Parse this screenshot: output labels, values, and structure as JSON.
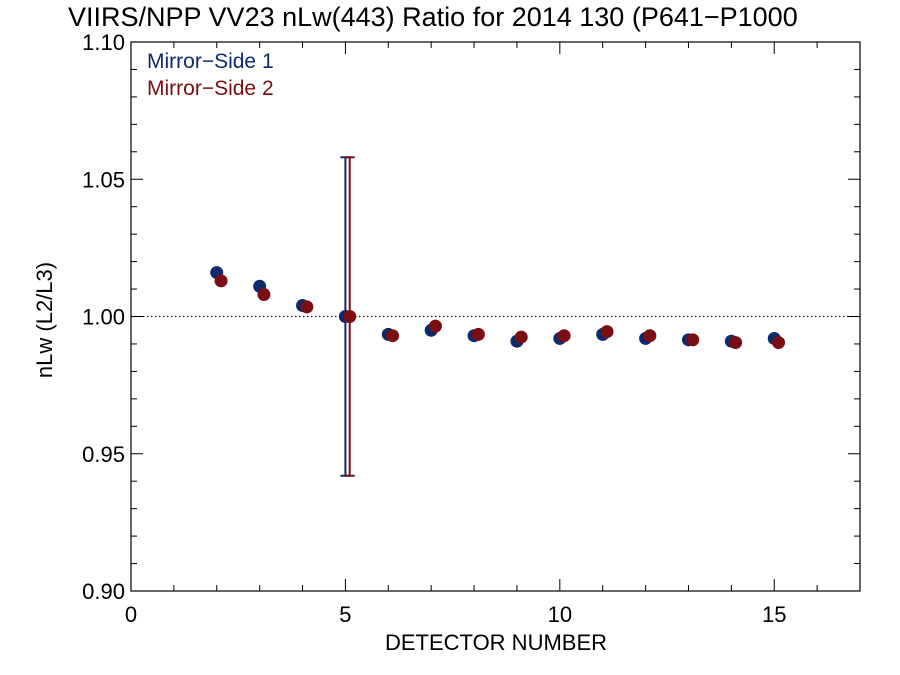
{
  "chart_data": {
    "type": "scatter",
    "title": "VIIRS/NPP VV23 nLw(443) Ratio for 2014 130 (P641−P1000",
    "xlabel": "DETECTOR NUMBER",
    "ylabel": "nLw (L2/L3)",
    "xlim": [
      0,
      17
    ],
    "ylim": [
      0.9,
      1.1
    ],
    "x_ticks": [
      0,
      5,
      10,
      15
    ],
    "x_tick_labels": [
      "0",
      "5",
      "10",
      "15"
    ],
    "y_ticks": [
      0.9,
      0.95,
      1.0,
      1.05,
      1.1
    ],
    "y_tick_labels": [
      "0.90",
      "0.95",
      "1.00",
      "1.05",
      "1.10"
    ],
    "reference_line": {
      "y": 1.0,
      "style": "dotted"
    },
    "legend_position": "top-left",
    "series": [
      {
        "name": "Mirror−Side 1",
        "color": "#0d2a6b",
        "x_offset": 0,
        "x": [
          2,
          3,
          4,
          5,
          6,
          7,
          8,
          9,
          10,
          11,
          12,
          13,
          14,
          15
        ],
        "y": [
          1.016,
          1.011,
          1.004,
          1.0,
          0.9935,
          0.995,
          0.993,
          0.991,
          0.992,
          0.9935,
          0.992,
          0.9915,
          0.991,
          0.992
        ],
        "error_bars": [
          {
            "x": 5,
            "low": 0.942,
            "high": 1.058
          }
        ]
      },
      {
        "name": "Mirror−Side 2",
        "color": "#7a0e13",
        "x_offset": 0.1,
        "x": [
          2,
          3,
          4,
          5,
          6,
          7,
          8,
          9,
          10,
          11,
          12,
          13,
          14,
          15
        ],
        "y": [
          1.013,
          1.008,
          1.0035,
          1.0,
          0.993,
          0.9965,
          0.9935,
          0.9925,
          0.993,
          0.9945,
          0.993,
          0.9915,
          0.9905,
          0.9905
        ],
        "error_bars": [
          {
            "x": 5,
            "low": 0.942,
            "high": 1.058
          }
        ]
      }
    ]
  }
}
